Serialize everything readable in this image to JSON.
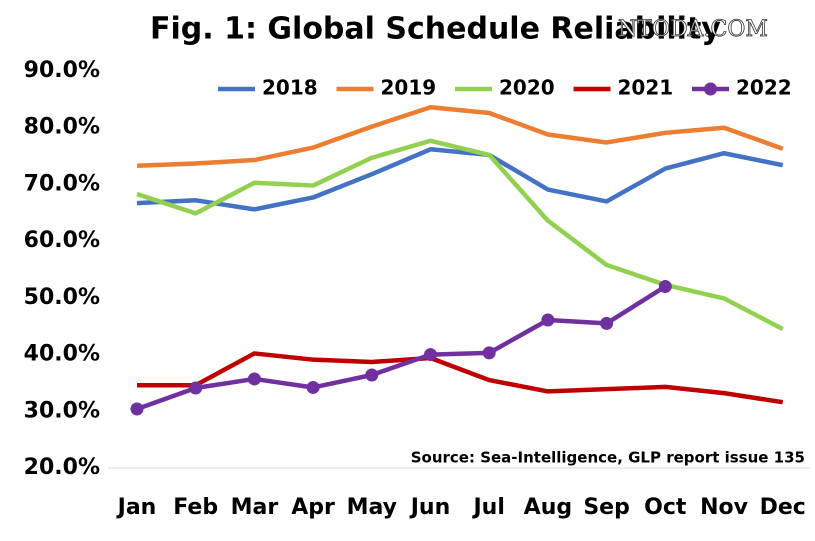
{
  "chart_data": {
    "type": "line",
    "title": "Fig. 1: Global Schedule Reliability",
    "watermark": "NTODA.COM",
    "annotation": "Source: Sea-Intelligence, GLP report issue 135",
    "categories": [
      "Jan",
      "Feb",
      "Mar",
      "Apr",
      "May",
      "Jun",
      "Jul",
      "Aug",
      "Sep",
      "Oct",
      "Nov",
      "Dec"
    ],
    "ylim": [
      20,
      90
    ],
    "yticks": [
      {
        "value": 20,
        "label": "20.0%"
      },
      {
        "value": 30,
        "label": "30.0%"
      },
      {
        "value": 40,
        "label": "40.0%"
      },
      {
        "value": 50,
        "label": "50.0%"
      },
      {
        "value": 60,
        "label": "60.0%"
      },
      {
        "value": 70,
        "label": "70.0%"
      },
      {
        "value": 80,
        "label": "80.0%"
      },
      {
        "value": 90,
        "label": "90.0%"
      }
    ],
    "grid": false,
    "legend": "top",
    "series": [
      {
        "name": "2018",
        "color": "#4472c4",
        "values": [
          66.7,
          67.2,
          65.6,
          67.7,
          71.8,
          76.2,
          75.2,
          69.1,
          67.0,
          72.8,
          75.5,
          73.4
        ]
      },
      {
        "name": "2019",
        "color": "#ed7d31",
        "values": [
          73.3,
          73.7,
          74.3,
          76.5,
          80.2,
          83.6,
          82.6,
          78.8,
          77.4,
          79.1,
          80.0,
          76.3
        ]
      },
      {
        "name": "2020",
        "color": "#92d050",
        "values": [
          68.3,
          64.9,
          70.3,
          69.8,
          74.7,
          77.7,
          75.2,
          63.6,
          55.8,
          52.3,
          49.9,
          44.5
        ]
      },
      {
        "name": "2021",
        "color": "#c00000",
        "values": [
          34.6,
          34.6,
          40.2,
          39.1,
          38.7,
          39.4,
          35.5,
          33.5,
          33.9,
          34.3,
          33.2,
          31.6
        ]
      },
      {
        "name": "2022",
        "color": "#7030a0",
        "markers": true,
        "values": [
          30.4,
          34.1,
          35.7,
          34.2,
          36.4,
          40.0,
          40.3,
          46.1,
          45.5,
          52.0,
          null,
          null
        ]
      }
    ]
  }
}
